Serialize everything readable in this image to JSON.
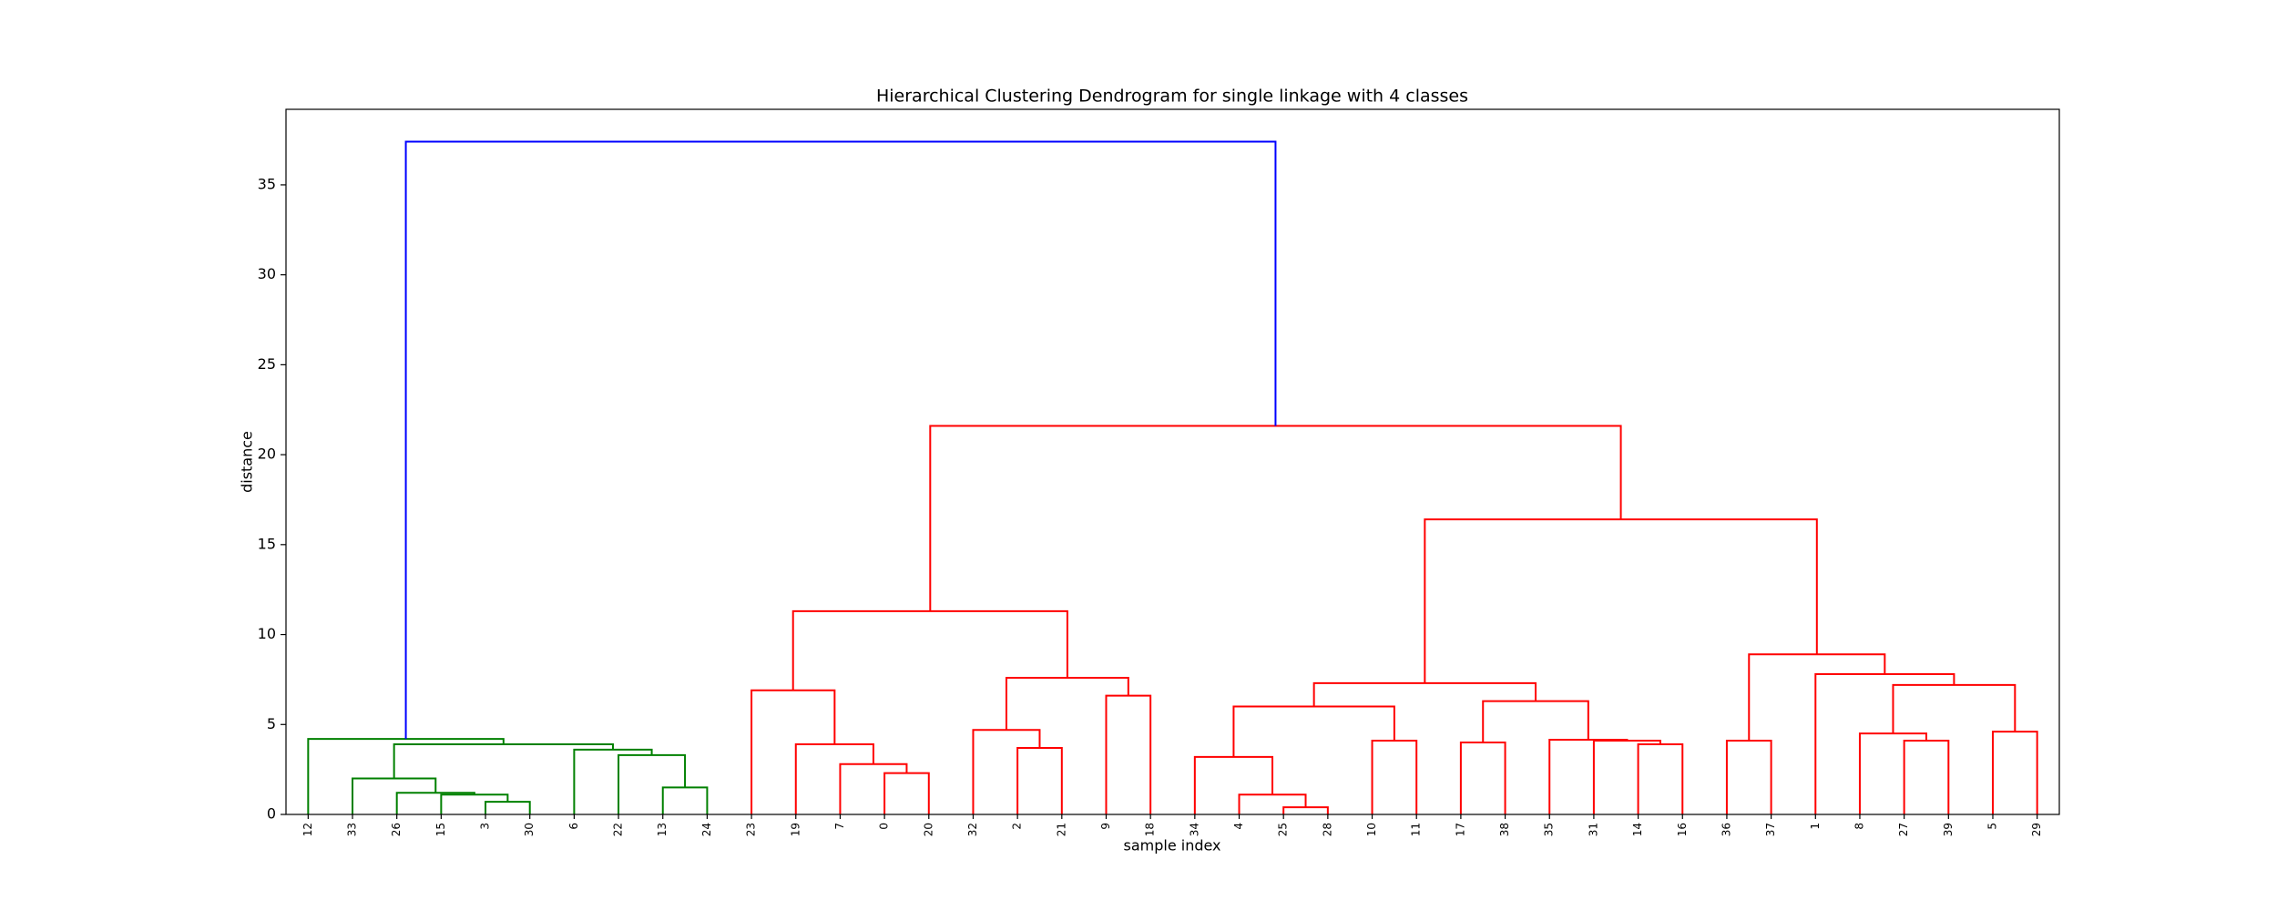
{
  "chart_data": {
    "type": "dendrogram",
    "title": "Hierarchical Clustering Dendrogram for single linkage with 4 classes",
    "xlabel": "sample index",
    "ylabel": "distance",
    "ylim": [
      0,
      39.2
    ],
    "yticks": [
      0,
      5,
      10,
      15,
      20,
      25,
      30,
      35
    ],
    "tree": {
      "height": 37.4,
      "color": "#0000ff",
      "children": [
        {
          "height": 4.2,
          "color": "#008000",
          "children": [
            {
              "label": "12"
            },
            {
              "height": 3.9,
              "color": "#008000",
              "children": [
                {
                  "height": 2.0,
                  "color": "#008000",
                  "children": [
                    {
                      "label": "33"
                    },
                    {
                      "height": 1.2,
                      "color": "#008000",
                      "children": [
                        {
                          "label": "26"
                        },
                        {
                          "height": 1.1,
                          "color": "#008000",
                          "children": [
                            {
                              "label": "15"
                            },
                            {
                              "height": 0.7,
                              "color": "#008000",
                              "children": [
                                {
                                  "label": "3"
                                },
                                {
                                  "label": "30"
                                }
                              ]
                            }
                          ]
                        }
                      ]
                    }
                  ]
                },
                {
                  "height": 3.6,
                  "color": "#008000",
                  "children": [
                    {
                      "label": "6"
                    },
                    {
                      "height": 3.3,
                      "color": "#008000",
                      "children": [
                        {
                          "label": "22"
                        },
                        {
                          "height": 1.5,
                          "color": "#008000",
                          "children": [
                            {
                              "label": "13"
                            },
                            {
                              "label": "24"
                            }
                          ]
                        }
                      ]
                    }
                  ]
                }
              ]
            }
          ]
        },
        {
          "height": 21.6,
          "color": "#ff0000",
          "children": [
            {
              "height": 11.3,
              "color": "#ff0000",
              "children": [
                {
                  "height": 6.9,
                  "color": "#ff0000",
                  "children": [
                    {
                      "label": "23"
                    },
                    {
                      "height": 3.9,
                      "color": "#ff0000",
                      "children": [
                        {
                          "label": "19"
                        },
                        {
                          "height": 2.8,
                          "color": "#ff0000",
                          "children": [
                            {
                              "label": "7"
                            },
                            {
                              "height": 2.3,
                              "color": "#ff0000",
                              "children": [
                                {
                                  "label": "0"
                                },
                                {
                                  "label": "20"
                                }
                              ]
                            }
                          ]
                        }
                      ]
                    }
                  ]
                },
                {
                  "height": 7.6,
                  "color": "#ff0000",
                  "children": [
                    {
                      "height": 4.7,
                      "color": "#ff0000",
                      "children": [
                        {
                          "label": "32"
                        },
                        {
                          "height": 3.7,
                          "color": "#ff0000",
                          "children": [
                            {
                              "label": "2"
                            },
                            {
                              "label": "21"
                            }
                          ]
                        }
                      ]
                    },
                    {
                      "height": 6.6,
                      "color": "#ff0000",
                      "children": [
                        {
                          "label": "9"
                        },
                        {
                          "label": "18"
                        }
                      ]
                    }
                  ]
                }
              ]
            },
            {
              "height": 16.4,
              "color": "#ff0000",
              "children": [
                {
                  "height": 7.3,
                  "color": "#ff0000",
                  "children": [
                    {
                      "height": 6.0,
                      "color": "#ff0000",
                      "children": [
                        {
                          "height": 3.2,
                          "color": "#ff0000",
                          "children": [
                            {
                              "label": "34"
                            },
                            {
                              "height": 1.1,
                              "color": "#ff0000",
                              "children": [
                                {
                                  "label": "4"
                                },
                                {
                                  "height": 0.4,
                                  "color": "#ff0000",
                                  "children": [
                                    {
                                      "label": "25"
                                    },
                                    {
                                      "label": "28"
                                    }
                                  ]
                                }
                              ]
                            }
                          ]
                        },
                        {
                          "height": 4.1,
                          "color": "#ff0000",
                          "children": [
                            {
                              "label": "10"
                            },
                            {
                              "label": "11"
                            }
                          ]
                        }
                      ]
                    },
                    {
                      "height": 6.3,
                      "color": "#ff0000",
                      "children": [
                        {
                          "height": 4.0,
                          "color": "#ff0000",
                          "children": [
                            {
                              "label": "17"
                            },
                            {
                              "label": "38"
                            }
                          ]
                        },
                        {
                          "height": 4.15,
                          "color": "#ff0000",
                          "children": [
                            {
                              "label": "35"
                            },
                            {
                              "height": 4.1,
                              "color": "#ff0000",
                              "children": [
                                {
                                  "label": "31"
                                },
                                {
                                  "height": 3.9,
                                  "color": "#ff0000",
                                  "children": [
                                    {
                                      "label": "14"
                                    },
                                    {
                                      "label": "16"
                                    }
                                  ]
                                }
                              ]
                            }
                          ]
                        }
                      ]
                    }
                  ]
                },
                {
                  "height": 8.9,
                  "color": "#ff0000",
                  "children": [
                    {
                      "height": 4.1,
                      "color": "#ff0000",
                      "children": [
                        {
                          "label": "36"
                        },
                        {
                          "label": "37"
                        }
                      ]
                    },
                    {
                      "height": 7.8,
                      "color": "#ff0000",
                      "children": [
                        {
                          "label": "1"
                        },
                        {
                          "height": 7.2,
                          "color": "#ff0000",
                          "children": [
                            {
                              "height": 4.5,
                              "color": "#ff0000",
                              "children": [
                                {
                                  "label": "8"
                                },
                                {
                                  "height": 4.1,
                                  "color": "#ff0000",
                                  "children": [
                                    {
                                      "label": "27"
                                    },
                                    {
                                      "label": "39"
                                    }
                                  ]
                                }
                              ]
                            },
                            {
                              "height": 4.6,
                              "color": "#ff0000",
                              "children": [
                                {
                                  "label": "5"
                                },
                                {
                                  "label": "29"
                                }
                              ]
                            }
                          ]
                        }
                      ]
                    }
                  ]
                }
              ]
            }
          ]
        }
      ]
    }
  }
}
